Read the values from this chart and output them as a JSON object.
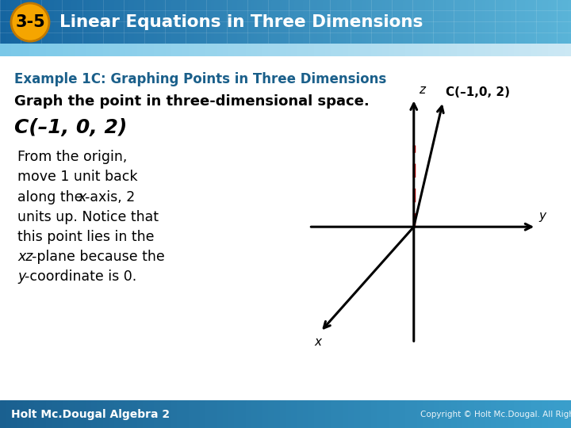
{
  "bg_color": "#ddeef8",
  "header_bg_left": "#1a6fa0",
  "header_bg_right": "#4ab0d8",
  "header_text": "Linear Equations in Three Dimensions",
  "header_badge": "3-5",
  "header_badge_color": "#f5a500",
  "example_title": "Example 1C: Graphing Points in Three Dimensions",
  "example_title_color": "#1a5f8a",
  "body_text_line1": "Graph the point in three-dimensional space.",
  "body_label": "C(–1, 0, 2)",
  "body_explanation_normal": [
    "From the origin,",
    "move 1 unit back",
    "along the ",
    "-axis, 2",
    "units up. Notice that",
    "this point lies in the",
    "-plane because the",
    "-coordinate is 0."
  ],
  "footer_left": "Holt Mc.Dougal Algebra 2",
  "footer_bg": "#2a80b0",
  "axis_color": "#000000",
  "dashed_color": "#cc0000",
  "diagram_point_label": "C(–1,0, 2)",
  "main_bg": "#ffffff",
  "grid_line_color": "#b0cce0"
}
